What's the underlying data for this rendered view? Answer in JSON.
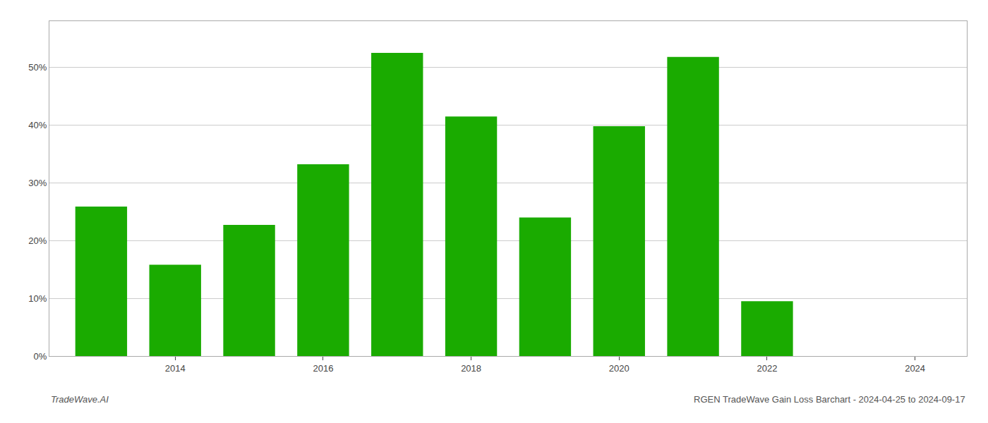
{
  "chart_data": {
    "type": "bar",
    "x": [
      2013,
      2014,
      2015,
      2016,
      2017,
      2018,
      2019,
      2020,
      2021,
      2022,
      2023
    ],
    "values": [
      25.9,
      15.8,
      22.7,
      33.2,
      52.5,
      41.5,
      24.0,
      39.8,
      51.8,
      9.5,
      0.0
    ],
    "color": "#1aab00",
    "xlim": [
      2012.3,
      2024.7
    ],
    "xticks": [
      2014,
      2016,
      2018,
      2020,
      2022,
      2024
    ],
    "ylim": [
      0,
      58
    ],
    "yticks": [
      {
        "value": 0,
        "label": "0%"
      },
      {
        "value": 10,
        "label": "10%"
      },
      {
        "value": 20,
        "label": "20%"
      },
      {
        "value": 30,
        "label": "30%"
      },
      {
        "value": 40,
        "label": "40%"
      },
      {
        "value": 50,
        "label": "50%"
      }
    ],
    "grid": "y",
    "annotations": [
      "TradeWave.AI",
      "RGEN TradeWave Gain Loss Barchart - 2024-04-25 to 2024-09-17"
    ]
  }
}
